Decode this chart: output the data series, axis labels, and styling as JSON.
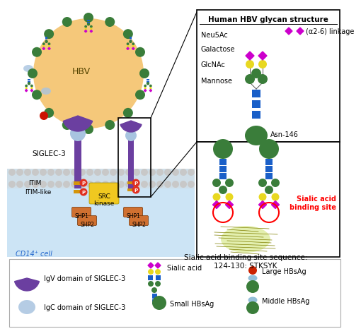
{
  "bg_color": "#ffffff",
  "cell_bg": "#cce4f5",
  "hbv_color": "#f5c87a",
  "siglec_color": "#6b3fa0",
  "igc_color": "#a8c4e0",
  "small_hbsag": "#3a7d3a",
  "glcnac_color": "#1a5fc8",
  "galactose_color": "#e8d820",
  "neu5ac_color": "#cc00cc",
  "mannose_color": "#3a7d3a",
  "itim_color": "#d4950a",
  "shp_color": "#d07030",
  "src_color": "#f0c820",
  "p_color": "#e03020",
  "red_circle": "#dd0000",
  "membrane_color": "#c8c8c8",
  "hbv_text_color": "#555500",
  "cd14_color": "#2266cc",
  "large_red": "#cc2200",
  "large_blue": "#7ab0d0",
  "text_hbv": "HBV",
  "text_siglec": "SIGLEC-3",
  "text_itim": "ITIM",
  "text_itimlike": "ITIM-like",
  "text_src": "SRC\nkinase",
  "text_cd14": "CD14⁺ cell",
  "text_glycan_title": "Human HBV glycan structure",
  "text_neu5ac": "Neu5Ac",
  "text_galactose": "Galactose",
  "text_glcnac": "GlcNAc",
  "text_mannose": "Mannose",
  "text_asn": "Asn-146",
  "text_linkage": "(α2-6) linkage",
  "text_sialic_site": "Sialic acid\nbinding site",
  "text_binding_seq": "Sialic acid binding site sequence:\n124-130: STKSYK",
  "text_igv": "IgV domain of SIGLEC-3",
  "text_igc": "IgC domain of SIGLEC-3",
  "text_sialic_leg": "Sialic acid",
  "text_small_hbsag": "Small HBsAg",
  "text_large_hbsag": "Large HBsAg",
  "text_middle_hbsag": "Middle HBsAg"
}
